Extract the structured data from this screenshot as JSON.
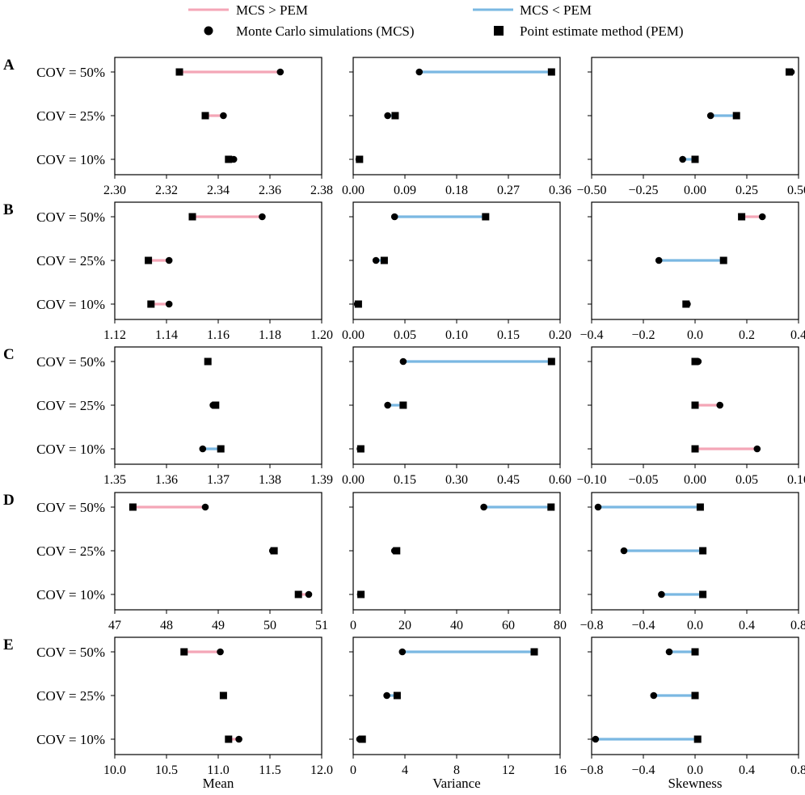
{
  "legend": {
    "items": [
      {
        "label": "MCS > PEM",
        "kind": "line",
        "color": "#f4a6b7"
      },
      {
        "label": "MCS < PEM",
        "kind": "line",
        "color": "#7ab8e2"
      },
      {
        "label": "Monte Carlo simulations (MCS)",
        "kind": "circle",
        "color": "#000000"
      },
      {
        "label": "Point estimate method (PEM)",
        "kind": "square",
        "color": "#000000"
      }
    ]
  },
  "colors": {
    "mcs_greater": "#f4a6b7",
    "mcs_less": "#7ab8e2",
    "marker": "#000000"
  },
  "column_labels": [
    "Mean",
    "Variance",
    "Skewness"
  ],
  "chart_data": {
    "type": "dumbbell",
    "row_categories": [
      "COV = 50%",
      "COV = 25%",
      "COV = 10%"
    ],
    "panels": [
      {
        "label": "A",
        "columns": [
          {
            "metric": "Mean",
            "xlim": [
              2.3,
              2.38
            ],
            "ticks": [
              "2.30",
              "2.32",
              "2.34",
              "2.36",
              "2.38"
            ],
            "rows": [
              {
                "cov": "COV = 50%",
                "mcs": 2.364,
                "pem": 2.325
              },
              {
                "cov": "COV = 25%",
                "mcs": 2.342,
                "pem": 2.335
              },
              {
                "cov": "COV = 10%",
                "mcs": 2.346,
                "pem": 2.344
              }
            ]
          },
          {
            "metric": "Variance",
            "xlim": [
              0.0,
              0.36
            ],
            "ticks": [
              "0.00",
              "0.09",
              "0.18",
              "0.27",
              "0.36"
            ],
            "rows": [
              {
                "cov": "COV = 50%",
                "mcs": 0.115,
                "pem": 0.345
              },
              {
                "cov": "COV = 25%",
                "mcs": 0.06,
                "pem": 0.073
              },
              {
                "cov": "COV = 10%",
                "mcs": 0.01,
                "pem": 0.011
              }
            ]
          },
          {
            "metric": "Skewness",
            "xlim": [
              -0.5,
              0.5
            ],
            "ticks": [
              "−0.50",
              "−0.25",
              "0.00",
              "0.25",
              "0.50"
            ],
            "rows": [
              {
                "cov": "COV = 50%",
                "mcs": 0.465,
                "pem": 0.455
              },
              {
                "cov": "COV = 25%",
                "mcs": 0.075,
                "pem": 0.2
              },
              {
                "cov": "COV = 10%",
                "mcs": -0.06,
                "pem": 0.0
              }
            ]
          }
        ]
      },
      {
        "label": "B",
        "columns": [
          {
            "metric": "Mean",
            "xlim": [
              1.12,
              1.2
            ],
            "ticks": [
              "1.12",
              "1.14",
              "1.16",
              "1.18",
              "1.20"
            ],
            "rows": [
              {
                "cov": "COV = 50%",
                "mcs": 1.177,
                "pem": 1.15
              },
              {
                "cov": "COV = 25%",
                "mcs": 1.141,
                "pem": 1.133
              },
              {
                "cov": "COV = 10%",
                "mcs": 1.141,
                "pem": 1.134
              }
            ]
          },
          {
            "metric": "Variance",
            "xlim": [
              0.0,
              0.2
            ],
            "ticks": [
              "0.00",
              "0.05",
              "0.10",
              "0.15",
              "0.20"
            ],
            "rows": [
              {
                "cov": "COV = 50%",
                "mcs": 0.04,
                "pem": 0.128
              },
              {
                "cov": "COV = 25%",
                "mcs": 0.022,
                "pem": 0.03
              },
              {
                "cov": "COV = 10%",
                "mcs": 0.004,
                "pem": 0.005
              }
            ]
          },
          {
            "metric": "Skewness",
            "xlim": [
              -0.4,
              0.4
            ],
            "ticks": [
              "−0.4",
              "−0.2",
              "0.0",
              "0.2",
              "0.4"
            ],
            "rows": [
              {
                "cov": "COV = 50%",
                "mcs": 0.26,
                "pem": 0.18
              },
              {
                "cov": "COV = 25%",
                "mcs": -0.14,
                "pem": 0.11
              },
              {
                "cov": "COV = 10%",
                "mcs": -0.03,
                "pem": -0.035
              }
            ]
          }
        ]
      },
      {
        "label": "C",
        "columns": [
          {
            "metric": "Mean",
            "xlim": [
              1.35,
              1.39
            ],
            "ticks": [
              "1.35",
              "1.36",
              "1.37",
              "1.38",
              "1.39"
            ],
            "rows": [
              {
                "cov": "COV = 50%",
                "mcs": 1.368,
                "pem": 1.368
              },
              {
                "cov": "COV = 25%",
                "mcs": 1.369,
                "pem": 1.3695
              },
              {
                "cov": "COV = 10%",
                "mcs": 1.367,
                "pem": 1.3705
              }
            ]
          },
          {
            "metric": "Variance",
            "xlim": [
              0.0,
              0.6
            ],
            "ticks": [
              "0.00",
              "0.15",
              "0.30",
              "0.45",
              "0.60"
            ],
            "rows": [
              {
                "cov": "COV = 50%",
                "mcs": 0.145,
                "pem": 0.575
              },
              {
                "cov": "COV = 25%",
                "mcs": 0.1,
                "pem": 0.145
              },
              {
                "cov": "COV = 10%",
                "mcs": 0.02,
                "pem": 0.022
              }
            ]
          },
          {
            "metric": "Skewness",
            "xlim": [
              -0.1,
              0.1
            ],
            "ticks": [
              "−0.10",
              "−0.05",
              "0.00",
              "0.05",
              "0.10"
            ],
            "rows": [
              {
                "cov": "COV = 50%",
                "mcs": 0.003,
                "pem": 0.0
              },
              {
                "cov": "COV = 25%",
                "mcs": 0.024,
                "pem": 0.0
              },
              {
                "cov": "COV = 10%",
                "mcs": 0.06,
                "pem": 0.0
              }
            ]
          }
        ]
      },
      {
        "label": "D",
        "columns": [
          {
            "metric": "Mean",
            "xlim": [
              47,
              51
            ],
            "ticks": [
              "47",
              "48",
              "49",
              "50",
              "51"
            ],
            "rows": [
              {
                "cov": "COV = 50%",
                "mcs": 48.75,
                "pem": 47.35
              },
              {
                "cov": "COV = 25%",
                "mcs": 50.05,
                "pem": 50.08
              },
              {
                "cov": "COV = 10%",
                "mcs": 50.75,
                "pem": 50.55
              }
            ]
          },
          {
            "metric": "Variance",
            "xlim": [
              0,
              80
            ],
            "ticks": [
              "0",
              "20",
              "40",
              "60",
              "80"
            ],
            "rows": [
              {
                "cov": "COV = 50%",
                "mcs": 50.5,
                "pem": 76.5
              },
              {
                "cov": "COV = 25%",
                "mcs": 16.0,
                "pem": 16.8
              },
              {
                "cov": "COV = 10%",
                "mcs": 2.8,
                "pem": 3.0
              }
            ]
          },
          {
            "metric": "Skewness",
            "xlim": [
              -0.8,
              0.8
            ],
            "ticks": [
              "−0.8",
              "−0.4",
              "0.0",
              "0.4",
              "0.8"
            ],
            "rows": [
              {
                "cov": "COV = 50%",
                "mcs": -0.75,
                "pem": 0.04
              },
              {
                "cov": "COV = 25%",
                "mcs": -0.55,
                "pem": 0.06
              },
              {
                "cov": "COV = 10%",
                "mcs": -0.26,
                "pem": 0.06
              }
            ]
          }
        ]
      },
      {
        "label": "E",
        "columns": [
          {
            "metric": "Mean",
            "xlim": [
              10.0,
              12.0
            ],
            "ticks": [
              "10.0",
              "10.5",
              "11.0",
              "11.5",
              "12.0"
            ],
            "rows": [
              {
                "cov": "COV = 50%",
                "mcs": 11.02,
                "pem": 10.67
              },
              {
                "cov": "COV = 25%",
                "mcs": 11.05,
                "pem": 11.05
              },
              {
                "cov": "COV = 10%",
                "mcs": 11.2,
                "pem": 11.1
              }
            ]
          },
          {
            "metric": "Variance",
            "xlim": [
              0,
              16
            ],
            "ticks": [
              "0",
              "4",
              "8",
              "12",
              "16"
            ],
            "rows": [
              {
                "cov": "COV = 50%",
                "mcs": 3.8,
                "pem": 14.0
              },
              {
                "cov": "COV = 25%",
                "mcs": 2.6,
                "pem": 3.4
              },
              {
                "cov": "COV = 10%",
                "mcs": 0.5,
                "pem": 0.7
              }
            ]
          },
          {
            "metric": "Skewness",
            "xlim": [
              -0.8,
              0.8
            ],
            "ticks": [
              "−0.8",
              "−0.4",
              "0.0",
              "0.4",
              "0.8"
            ],
            "rows": [
              {
                "cov": "COV = 50%",
                "mcs": -0.2,
                "pem": 0.0
              },
              {
                "cov": "COV = 25%",
                "mcs": -0.32,
                "pem": 0.0
              },
              {
                "cov": "COV = 10%",
                "mcs": -0.77,
                "pem": 0.02
              }
            ]
          }
        ]
      }
    ]
  }
}
